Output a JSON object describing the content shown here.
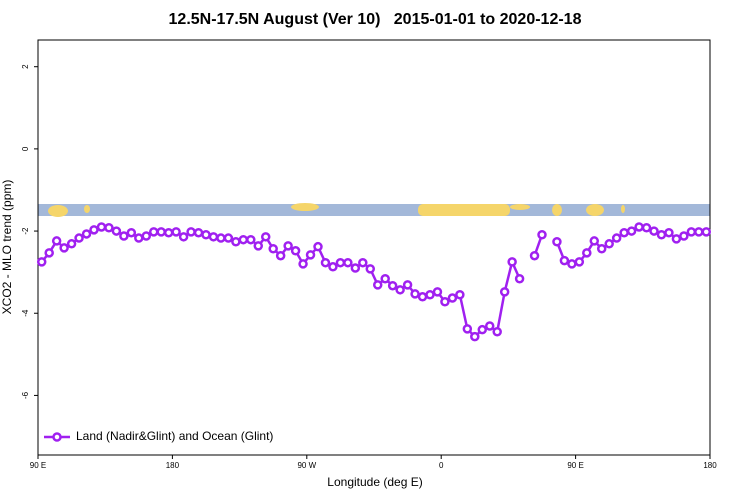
{
  "chart_data": {
    "type": "line",
    "title": "12.5N-17.5N August (Ver 10)   2015-01-01 to 2020-12-18",
    "xlabel": "Longitude (deg E)",
    "ylabel": "XCO2 - MLO trend (ppm)",
    "xlim": [
      90,
      540
    ],
    "ylim": [
      -7.45,
      2.65
    ],
    "xticks": [
      {
        "value": 90,
        "label": "90 E"
      },
      180,
      {
        "value": 270,
        "label": "90 W"
      },
      {
        "value": 360,
        "label": "0"
      },
      {
        "value": 450,
        "label": "90 E"
      },
      {
        "value": 540,
        "label": "180"
      }
    ],
    "yticks": [
      2,
      0,
      -2,
      -4,
      -6
    ],
    "legend": "bottom-left",
    "x": [
      92.5,
      97.5,
      102.5,
      107.5,
      112.5,
      117.5,
      122.5,
      127.5,
      132.5,
      137.5,
      142.5,
      147.5,
      152.5,
      157.5,
      162.5,
      167.5,
      172.5,
      177.5,
      182.5,
      187.5,
      192.5,
      197.5,
      202.5,
      207.5,
      212.5,
      217.5,
      222.5,
      227.5,
      232.5,
      237.5,
      242.5,
      247.5,
      252.5,
      257.5,
      262.5,
      267.5,
      272.5,
      277.5,
      282.5,
      287.5,
      292.5,
      297.5,
      302.5,
      307.5,
      312.5,
      317.5,
      322.5,
      327.5,
      332.5,
      337.5,
      342.5,
      347.5,
      352.5,
      357.5,
      362.5,
      367.5,
      372.5,
      377.5,
      382.5,
      387.5,
      392.5,
      397.5,
      402.5,
      407.5,
      412.5,
      417.5,
      422.5,
      427.5,
      432.5,
      437.5,
      442.5,
      447.5,
      452.5,
      457.5,
      462.5,
      467.5,
      472.5,
      477.5,
      482.5,
      487.5,
      492.5,
      497.5,
      502.5,
      507.5,
      512.5,
      517.5,
      522.5,
      527.5,
      532.5,
      537.5
    ],
    "series": [
      {
        "name": "Land (Nadir&Glint) and Ocean (Glint)",
        "color": "#a020f0",
        "values": [
          -2.75,
          -2.53,
          -2.24,
          -2.41,
          -2.31,
          -2.17,
          -2.07,
          -1.97,
          -1.9,
          -1.92,
          -2.0,
          -2.12,
          -2.04,
          -2.17,
          -2.12,
          -2.02,
          -2.02,
          -2.04,
          -2.02,
          -2.14,
          -2.02,
          -2.04,
          -2.09,
          -2.14,
          -2.17,
          -2.17,
          -2.26,
          -2.21,
          -2.21,
          -2.36,
          -2.14,
          -2.43,
          -2.6,
          -2.36,
          -2.48,
          -2.8,
          -2.58,
          -2.38,
          -2.77,
          -2.87,
          -2.77,
          -2.77,
          -2.9,
          -2.77,
          -2.92,
          -3.31,
          -3.16,
          -3.33,
          -3.43,
          -3.31,
          -3.53,
          -3.6,
          -3.55,
          -3.48,
          -3.72,
          -3.63,
          -3.55,
          -4.38,
          -4.57,
          -4.4,
          -4.31,
          -4.45,
          -3.48,
          -2.75,
          -3.16,
          null,
          -2.6,
          -2.09,
          null,
          -2.26,
          -2.72,
          -2.8,
          -2.75,
          -2.53,
          -2.24,
          -2.43,
          -2.31,
          -2.17,
          -2.04,
          -2.0,
          -1.9,
          -1.92,
          -2.0,
          -2.09,
          -2.04,
          -2.19,
          -2.12,
          -2.02,
          -2.02,
          -2.02
        ]
      }
    ]
  }
}
